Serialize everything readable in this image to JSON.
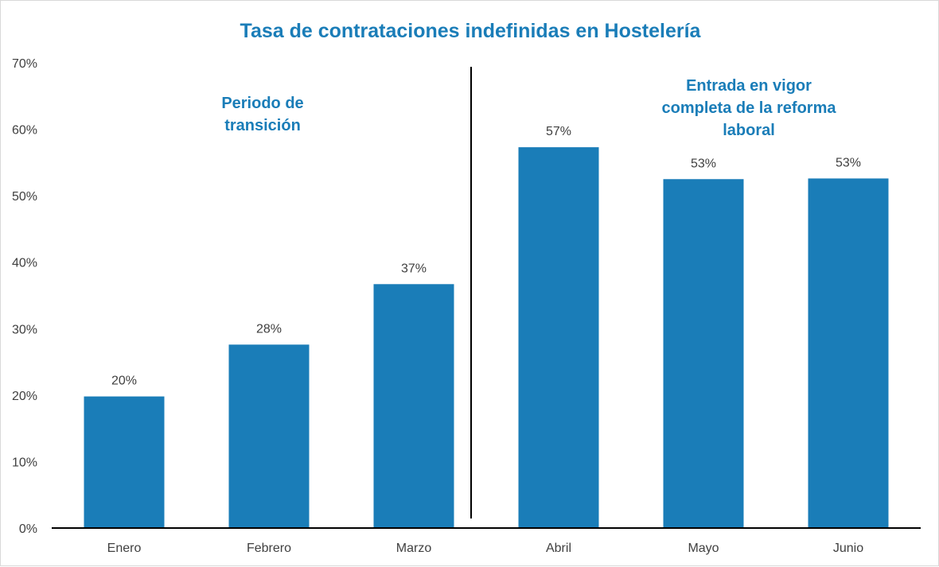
{
  "chart_data": {
    "type": "bar",
    "title": "Tasa de contrataciones indefinidas en Hostelería",
    "categories": [
      "Enero",
      "Febrero",
      "Marzo",
      "Abril",
      "Mayo",
      "Junio"
    ],
    "values": [
      19.8,
      27.6,
      36.7,
      57.3,
      52.5,
      52.6
    ],
    "data_labels": [
      "20%",
      "28%",
      "37%",
      "57%",
      "53%",
      "53%"
    ],
    "ylim": [
      0,
      70
    ],
    "y_ticks": [
      "0%",
      "10%",
      "20%",
      "30%",
      "40%",
      "50%",
      "60%",
      "70%"
    ],
    "xlabel": "",
    "ylabel": "",
    "grid": false,
    "divider_between": [
      "Marzo",
      "Abril"
    ],
    "annotations": [
      {
        "lines": [
          "Periodo de",
          "transición"
        ],
        "region": "left"
      },
      {
        "lines": [
          "Entrada en vigor",
          "completa de la reforma",
          "laboral"
        ],
        "region": "right"
      }
    ],
    "colors": {
      "bar": "#1a7db8",
      "title": "#1a7db8",
      "annotation": "#1a7db8",
      "axis": "#000000",
      "divider": "#000000"
    }
  }
}
